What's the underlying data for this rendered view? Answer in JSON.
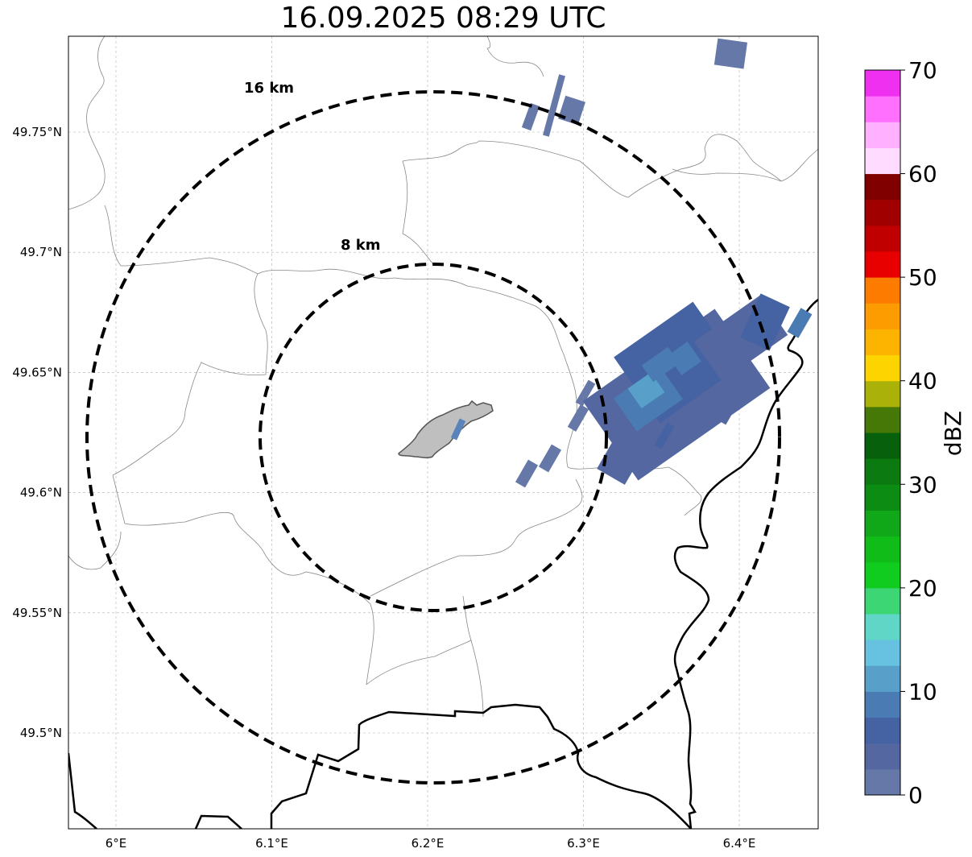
{
  "title": "16.09.2025 08:29 UTC",
  "map": {
    "lon_range": [
      5.97,
      6.45
    ],
    "lat_range": [
      49.46,
      49.79
    ],
    "x_ticks": [
      {
        "value": 6.0,
        "label": "6°E"
      },
      {
        "value": 6.1,
        "label": "6.1°E"
      },
      {
        "value": 6.2,
        "label": "6.2°E"
      },
      {
        "value": 6.3,
        "label": "6.3°E"
      },
      {
        "value": 6.4,
        "label": "6.4°E"
      }
    ],
    "y_ticks": [
      {
        "value": 49.5,
        "label": "49.5°N"
      },
      {
        "value": 49.55,
        "label": "49.55°N"
      },
      {
        "value": 49.6,
        "label": "49.6°N"
      },
      {
        "value": 49.65,
        "label": "49.65°N"
      },
      {
        "value": 49.7,
        "label": "49.7°N"
      },
      {
        "value": 49.75,
        "label": "49.75°N"
      }
    ],
    "grid": true,
    "radar_center": {
      "lon": 6.2,
      "lat": 49.622
    },
    "range_rings": [
      {
        "label": "8 km",
        "radius_km": 8
      },
      {
        "label": "16 km",
        "radius_km": 16
      }
    ]
  },
  "colorbar": {
    "label": "dBZ",
    "min": 0,
    "max": 70,
    "step": 2.5,
    "ticks": [
      "0",
      "10",
      "20",
      "30",
      "40",
      "50",
      "60",
      "70"
    ],
    "colors": [
      "#6578a8",
      "#5467a1",
      "#4562a3",
      "#4a7bb3",
      "#58a0c9",
      "#66c2e0",
      "#60d6c6",
      "#3cd674",
      "#10cc1e",
      "#10bc18",
      "#10a818",
      "#0c8c12",
      "#0b7a10",
      "#07600c",
      "#467807",
      "#aab20a",
      "#fdd400",
      "#fdb400",
      "#fd9c00",
      "#fd7c00",
      "#e80000",
      "#c00000",
      "#a00000",
      "#800000",
      "#ffdcff",
      "#ffb0ff",
      "#ff70ff",
      "#f030f0"
    ]
  },
  "chart_data": {
    "type": "map",
    "title": "16.09.2025 08:29 UTC",
    "xlabel": "",
    "ylabel": "",
    "xlim": [
      5.97,
      6.45
    ],
    "ylim": [
      49.46,
      49.79
    ],
    "colorbar_label": "dBZ",
    "colorbar_range": [
      0,
      70
    ],
    "annotations": [
      "8 km",
      "16 km"
    ],
    "echo_cells": [
      {
        "lon": 6.28,
        "lat": 49.768,
        "dBZ": 3
      },
      {
        "lon": 6.393,
        "lat": 49.782,
        "dBZ": 3
      },
      {
        "lon": 6.27,
        "lat": 49.607,
        "dBZ": 3
      },
      {
        "lon": 6.33,
        "lat": 49.635,
        "dBZ": 10
      },
      {
        "lon": 6.35,
        "lat": 49.645,
        "dBZ": 8
      },
      {
        "lon": 6.4,
        "lat": 49.66,
        "dBZ": 5
      },
      {
        "lon": 6.33,
        "lat": 49.61,
        "dBZ": 4
      }
    ]
  }
}
